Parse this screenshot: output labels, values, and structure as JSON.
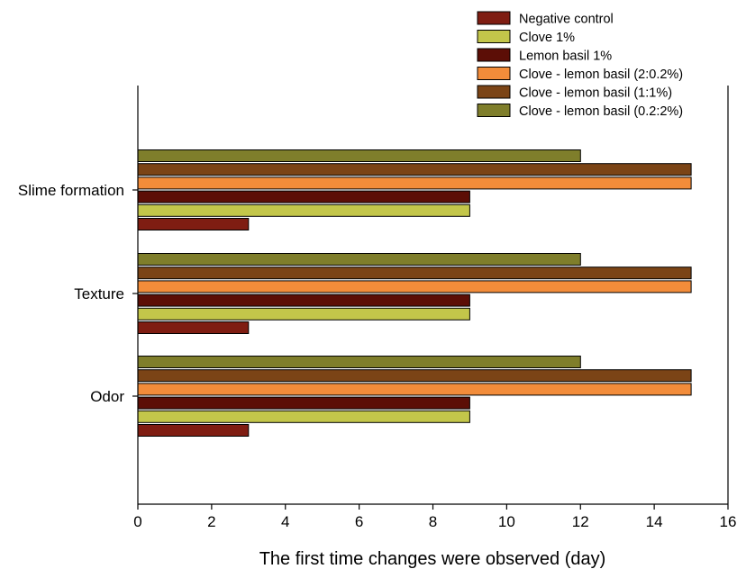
{
  "chart_data": {
    "type": "bar",
    "orientation": "horizontal",
    "categories": [
      "Slime formation",
      "Texture",
      "Odor"
    ],
    "series": [
      {
        "name": "Negative control",
        "color": "#7f1d12",
        "values": [
          3,
          3,
          3
        ]
      },
      {
        "name": "Clove 1%",
        "color": "#c3c64a",
        "values": [
          9,
          9,
          9
        ]
      },
      {
        "name": "Lemon basil 1%",
        "color": "#5c0e06",
        "values": [
          9,
          9,
          9
        ]
      },
      {
        "name": "Clove - lemon basil (2:0.2%)",
        "color": "#f28c3a",
        "values": [
          15,
          15,
          15
        ]
      },
      {
        "name": "Clove - lemon basil (1:1%)",
        "color": "#7b4416",
        "values": [
          15,
          15,
          15
        ]
      },
      {
        "name": "Clove - lemon basil (0.2:2%)",
        "color": "#7f7e2b",
        "values": [
          12,
          12,
          12
        ]
      }
    ],
    "xlabel": "The first time changes were observed (day)",
    "ylabel": "",
    "xlim": [
      0,
      16
    ],
    "xticks": [
      "0",
      "2",
      "4",
      "6",
      "8",
      "10",
      "12",
      "14",
      "16"
    ],
    "grid": false,
    "legend_position": "top-right"
  }
}
